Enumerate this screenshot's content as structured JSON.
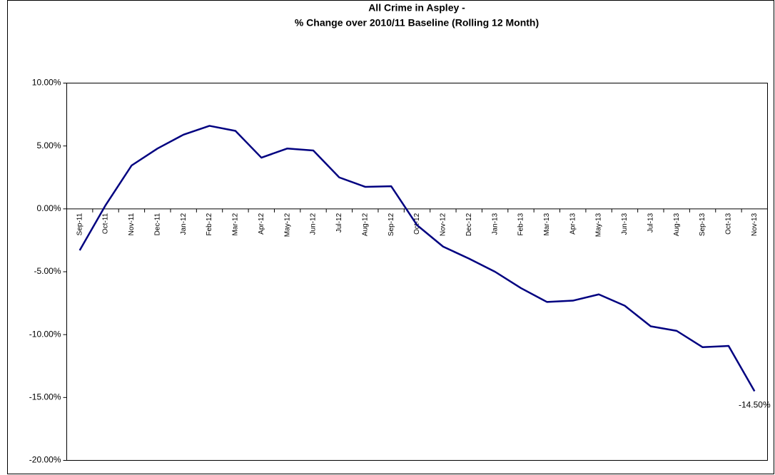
{
  "chart_data": {
    "type": "line",
    "title": "All Crime in Aspley -",
    "subtitle": "% Change over 2010/11 Baseline (Rolling 12 Month)",
    "categories": [
      "Sep-11",
      "Oct-11",
      "Nov-11",
      "Dec-11",
      "Jan-12",
      "Feb-12",
      "Mar-12",
      "Apr-12",
      "May-12",
      "Jun-12",
      "Jul-12",
      "Aug-12",
      "Sep-12",
      "Oct-12",
      "Nov-12",
      "Dec-12",
      "Jan-13",
      "Feb-13",
      "Mar-13",
      "Apr-13",
      "May-13",
      "Jun-13",
      "Jul-13",
      "Aug-13",
      "Sep-13",
      "Oct-13",
      "Nov-13"
    ],
    "values": [
      -3.3,
      0.3,
      3.45,
      4.8,
      5.9,
      6.6,
      6.2,
      4.07,
      4.8,
      4.64,
      2.5,
      1.75,
      1.8,
      -1.3,
      -3.0,
      -3.96,
      -5.0,
      -6.3,
      -7.4,
      -7.3,
      -6.8,
      -7.7,
      -9.34,
      -9.7,
      -11.0,
      -10.9,
      -14.5
    ],
    "value_labels": [
      null,
      null,
      null,
      null,
      null,
      null,
      null,
      null,
      null,
      null,
      null,
      null,
      null,
      null,
      null,
      null,
      null,
      null,
      null,
      null,
      null,
      null,
      null,
      null,
      null,
      null,
      "-14.50%"
    ],
    "color": "#000080",
    "ylim": [
      -20,
      10
    ],
    "yticks": [
      {
        "value": -20,
        "label": "-20.00%"
      },
      {
        "value": -15,
        "label": "-15.00%"
      },
      {
        "value": -10,
        "label": "-10.00%"
      },
      {
        "value": -5,
        "label": "-5.00%"
      },
      {
        "value": 0,
        "label": "0.00%"
      },
      {
        "value": 5,
        "label": "5.00%"
      },
      {
        "value": 10,
        "label": "10.00%"
      }
    ],
    "grid": false
  }
}
